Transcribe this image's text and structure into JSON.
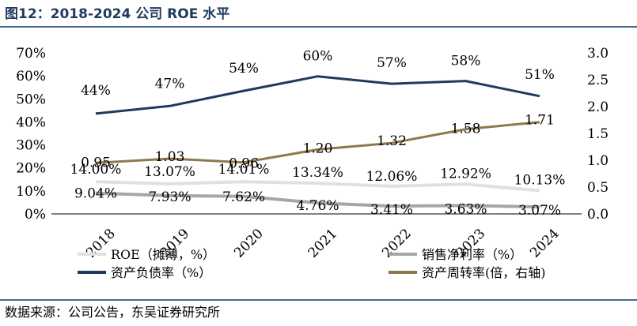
{
  "header": {
    "title": "图12：2018-2024 公司 ROE 水平"
  },
  "footer": {
    "source": "数据来源：公司公告，东吴证券研究所"
  },
  "chart_data": {
    "type": "line",
    "categories": [
      "2018",
      "2019",
      "2020",
      "2021",
      "2022",
      "2023",
      "2024"
    ],
    "left_axis": {
      "ticks": [
        "0%",
        "10%",
        "20%",
        "30%",
        "40%",
        "50%",
        "60%",
        "70%"
      ],
      "range": [
        0,
        70
      ]
    },
    "right_axis": {
      "ticks": [
        "0.0",
        "0.5",
        "1.0",
        "1.5",
        "2.0",
        "2.5",
        "3.0"
      ],
      "range": [
        0,
        3
      ]
    },
    "series": [
      {
        "name": "资产负债率（%）",
        "axis": "left",
        "color": "#1f3a5f",
        "values": [
          43.6,
          46.9,
          53.5,
          59.8,
          56.6,
          57.8,
          51.2
        ],
        "labels": [
          "44%",
          "47%",
          "54%",
          "60%",
          "57%",
          "58%",
          "51%"
        ]
      },
      {
        "name": "资产周转率(倍，右轴)",
        "axis": "right",
        "color": "#8c7a4b",
        "values": [
          0.95,
          1.03,
          0.96,
          1.2,
          1.32,
          1.58,
          1.71
        ],
        "labels": [
          "0.95",
          "1.03",
          "0.96",
          "1.20",
          "1.32",
          "1.58",
          "1.71"
        ]
      },
      {
        "name": "ROE（摊薄，%）",
        "axis": "left",
        "color": "#e0e0e0",
        "values": [
          14.0,
          13.07,
          14.01,
          13.34,
          12.06,
          12.92,
          10.13
        ],
        "labels": [
          "14.00%",
          "13.07%",
          "14.01%",
          "13.34%",
          "12.06%",
          "12.92%",
          "10.13%"
        ]
      },
      {
        "name": "销售净利率（%）",
        "axis": "left",
        "color": "#a6a6a6",
        "values": [
          9.04,
          7.93,
          7.62,
          4.76,
          3.41,
          3.63,
          3.07
        ],
        "labels": [
          "9.04%",
          "7.93%",
          "7.62%",
          "4.76%",
          "3.41%",
          "3.63%",
          "3.07%"
        ]
      }
    ],
    "legend_position": "bottom",
    "grid": false
  }
}
